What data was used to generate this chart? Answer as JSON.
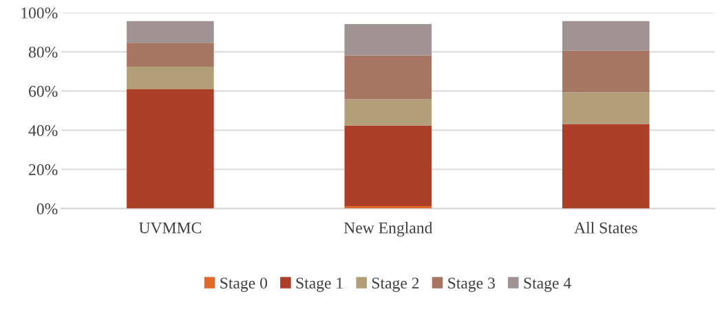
{
  "chart_data": {
    "type": "bar",
    "stacked": true,
    "categories": [
      "UVMMC",
      "New England",
      "All States"
    ],
    "series": [
      {
        "name": "Stage 0",
        "color": "#e06a2b",
        "values": [
          null,
          1.3,
          null
        ]
      },
      {
        "name": "Stage 1",
        "color": "#ab3f28",
        "values": [
          60.9,
          41.1,
          43.2
        ]
      },
      {
        "name": "Stage 2",
        "color": "#b29f7a",
        "values": [
          11.5,
          13.4,
          16.2
        ]
      },
      {
        "name": "Stage 3",
        "color": "#a67663",
        "values": [
          12.2,
          22.3,
          21.2
        ]
      },
      {
        "name": "Stage 4",
        "color": "#a19394",
        "values": [
          11.1,
          16.1,
          15.1
        ]
      }
    ],
    "ylim": [
      0,
      100
    ],
    "yticks": [
      {
        "value": 0,
        "label": "0%"
      },
      {
        "value": 20,
        "label": "20%"
      },
      {
        "value": 40,
        "label": "40%"
      },
      {
        "value": 60,
        "label": "60%"
      },
      {
        "value": 80,
        "label": "80%"
      },
      {
        "value": 100,
        "label": "100%"
      }
    ],
    "grid": "y",
    "legend": "bottom"
  }
}
